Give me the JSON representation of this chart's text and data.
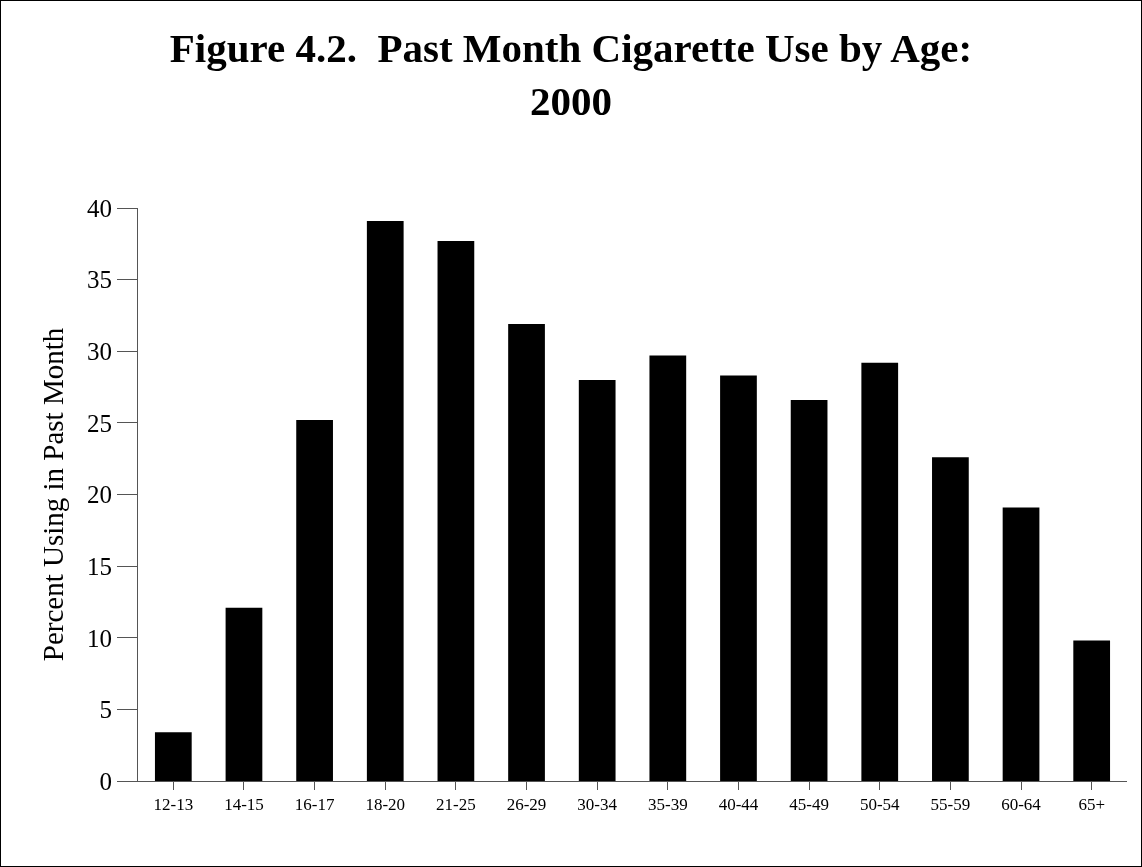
{
  "chart_data": {
    "type": "bar",
    "title": "Figure 4.2.  Past Month Cigarette Use by Age:\n2000",
    "ylabel": "Percent Using in Past Month",
    "categories": [
      "12-13",
      "14-15",
      "16-17",
      "18-20",
      "21-25",
      "26-29",
      "30-34",
      "35-39",
      "40-44",
      "45-49",
      "50-54",
      "55-59",
      "60-64",
      "65+"
    ],
    "values": [
      3.4,
      12.1,
      25.2,
      39.1,
      37.7,
      31.9,
      28.0,
      29.7,
      28.3,
      26.6,
      29.2,
      22.6,
      19.1,
      9.8
    ],
    "color": "#000000",
    "ylim": [
      0,
      40
    ],
    "yticks": [
      0,
      5,
      10,
      15,
      20,
      25,
      30,
      35,
      40
    ],
    "grid": false
  }
}
